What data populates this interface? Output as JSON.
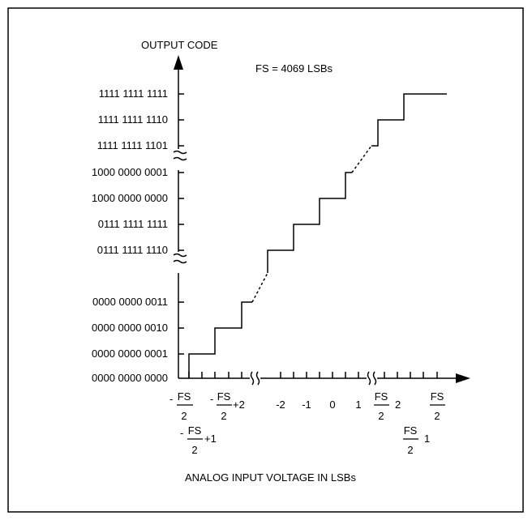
{
  "y_axis_title": "OUTPUT CODE",
  "x_axis_title": "ANALOG INPUT VOLTAGE IN LSBs",
  "annotation": "FS = 4069 LSBs",
  "output_codes": [
    "1111 1111 1111",
    "1111 1111 1110",
    "1111 1111 1101",
    "1000 0000 0001",
    "1000 0000 0000",
    "0111 1111 1111",
    "0111 1111 1110",
    "0000 0000 0011",
    "0000 0000 0010",
    "0000 0000 0001",
    "0000 0000 0000"
  ],
  "x_ticks": {
    "neg_fs_half": {
      "sign": "-",
      "num": "FS",
      "den": "2"
    },
    "neg_fs_half_plus2": {
      "sign": "-",
      "num": "FS",
      "den": "2",
      "suffix": "+2"
    },
    "neg_fs_half_plus1": {
      "sign": "-",
      "num": "FS",
      "den": "2",
      "suffix": "+1"
    },
    "center": [
      "-2",
      "-1",
      "0",
      "1"
    ],
    "fs_half_minus2": {
      "num": "FS",
      "den": "2",
      "suffix": "2"
    },
    "fs_half": {
      "num": "FS",
      "den": "2"
    },
    "fs_half_minus1": {
      "num": "FS",
      "den": "2",
      "suffix": "1"
    }
  },
  "colors": {
    "line": "#000000",
    "background": "#ffffff"
  }
}
